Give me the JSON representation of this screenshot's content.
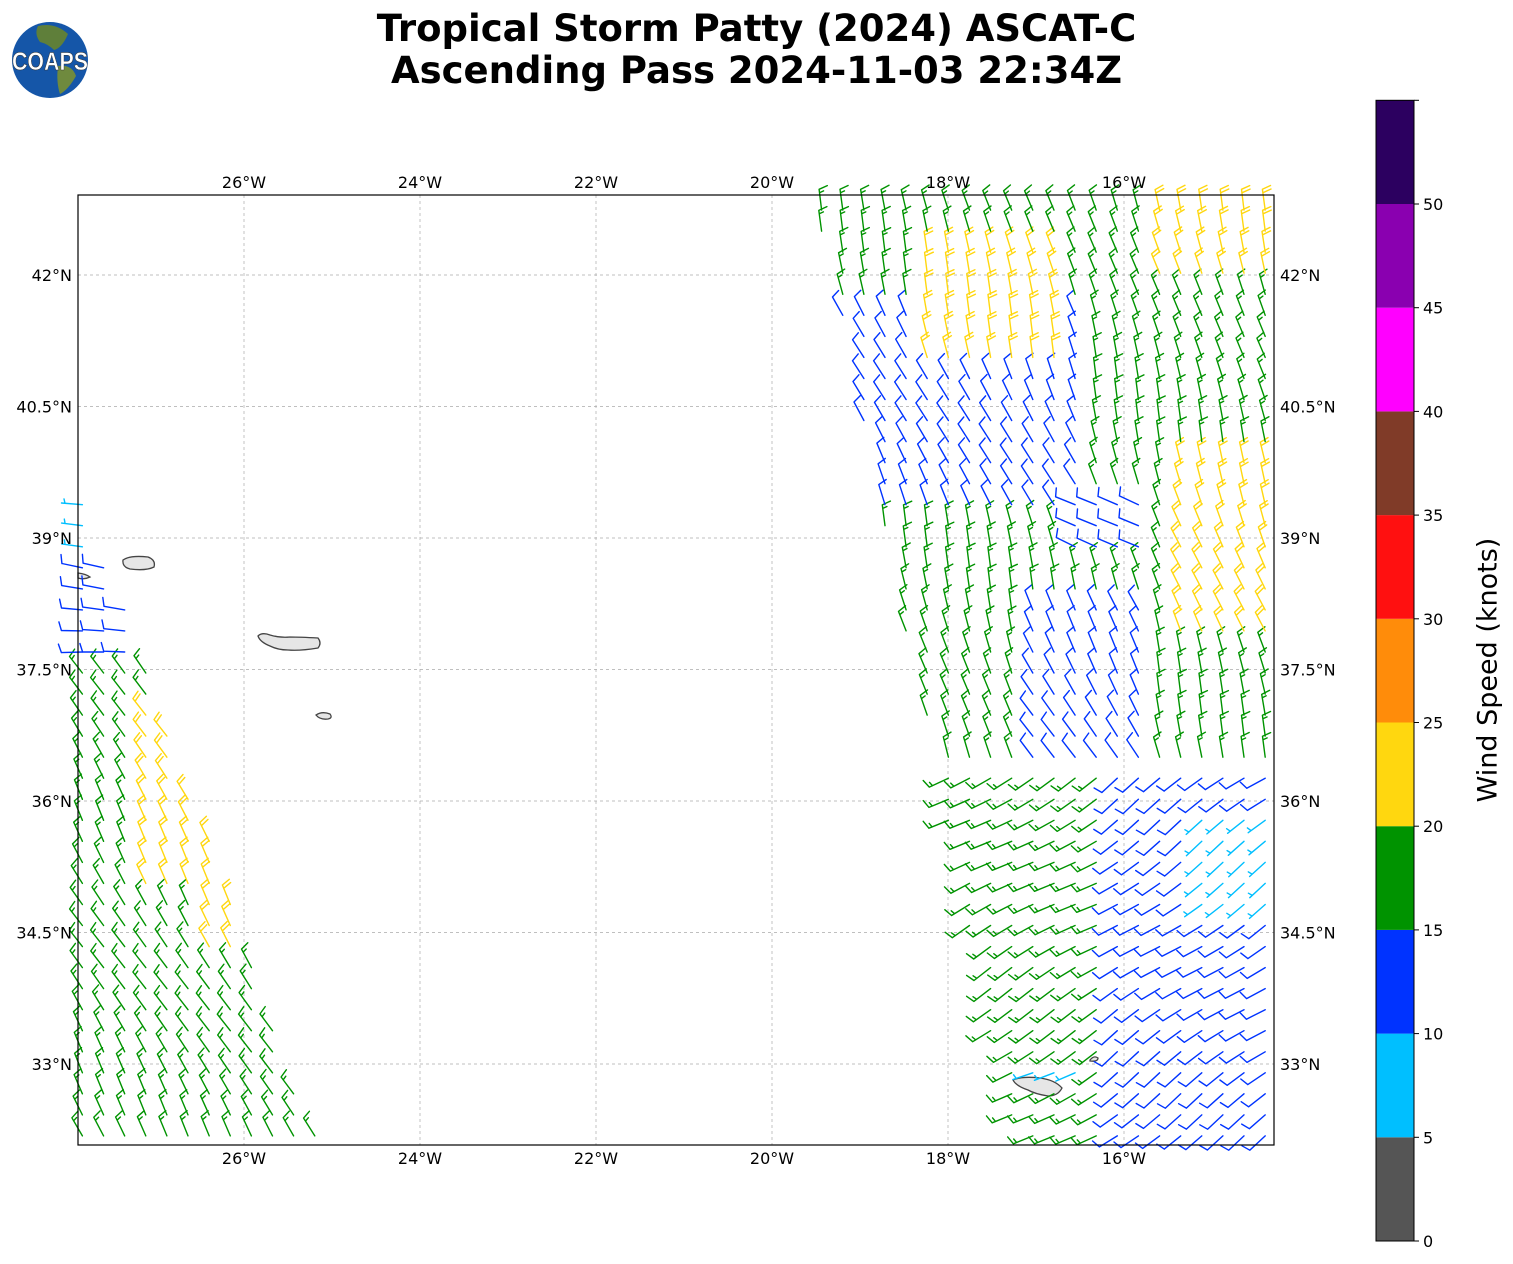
{
  "title": {
    "line1": "Tropical Storm Patty (2024) ASCAT-C",
    "line2": "Ascending Pass 2024-11-03 22:34Z"
  },
  "logo": {
    "text": "COAPS"
  },
  "chart_data": {
    "type": "map-wind-barbs",
    "extent": {
      "lon": [
        -27.886,
        -14.3
      ],
      "lat": [
        32.08,
        42.91
      ]
    },
    "lon_ticks": [
      {
        "v": -26,
        "label": "26°W"
      },
      {
        "v": -24,
        "label": "24°W"
      },
      {
        "v": -22,
        "label": "22°W"
      },
      {
        "v": -20,
        "label": "20°W"
      },
      {
        "v": -18,
        "label": "18°W"
      },
      {
        "v": -16,
        "label": "16°W"
      }
    ],
    "lat_ticks": [
      {
        "v": 42,
        "label": "42°N"
      },
      {
        "v": 40.5,
        "label": "40.5°N"
      },
      {
        "v": 39,
        "label": "39°N"
      },
      {
        "v": 37.5,
        "label": "37.5°N"
      },
      {
        "v": 36,
        "label": "36°N"
      },
      {
        "v": 34.5,
        "label": "34.5°N"
      },
      {
        "v": 33,
        "label": "33°N"
      }
    ],
    "grid": true,
    "colorbar": {
      "label": "Wind Speed (knots)",
      "bounds": [
        0,
        5,
        10,
        15,
        20,
        25,
        30,
        35,
        40,
        45,
        50,
        55
      ],
      "tick_labels": [
        "0",
        "5",
        "10",
        "15",
        "20",
        "25",
        "30",
        "35",
        "40",
        "45",
        "50"
      ],
      "colors": [
        "#555555",
        "#00bfff",
        "#0033ff",
        "#009300",
        "#ffd70f",
        "#ff8c0a",
        "#ff1010",
        "#803b28",
        "#ff00ff",
        "#8a00b0",
        "#2c0060"
      ]
    },
    "swaths": [
      {
        "name": "west",
        "edge": [
          [
            -27.886,
            39.66
          ],
          [
            -25.14,
            32.08
          ]
        ],
        "side": "west",
        "step": 0.24,
        "default": {
          "speed": 17,
          "dir": 330
        },
        "zones": [
          {
            "lon": [
              -27.9,
              -26.3
            ],
            "lat": [
              37.6,
              39.7
            ],
            "speed": 12,
            "dir": 275
          },
          {
            "lon": [
              -27.9,
              -27.5
            ],
            "lat": [
              38.9,
              39.7
            ],
            "speed": 8,
            "dir": 270
          },
          {
            "lon": [
              -27.3,
              -26.1
            ],
            "lat": [
              35.0,
              37.1
            ],
            "speed": 22,
            "dir": 330
          },
          {
            "lon": [
              -26.6,
              -25.8
            ],
            "lat": [
              34.3,
              35.4
            ],
            "speed": 22,
            "dir": 330
          }
        ]
      },
      {
        "name": "east",
        "edge": [
          [
            -19.57,
            42.88
          ],
          [
            -17.3,
            32.1
          ]
        ],
        "side": "east",
        "step": 0.24,
        "default": {
          "speed": 17,
          "dir": 345
        },
        "zones": [
          {
            "lon": [
              -19.4,
              -16.5
            ],
            "lat": [
              39.2,
              41.6
            ],
            "speed": 12,
            "dir": 335
          },
          {
            "lon": [
              -16.6,
              -15.6
            ],
            "lat": [
              38.8,
              39.6
            ],
            "speed": 12,
            "dir": 300
          },
          {
            "lon": [
              -18.3,
              -16.6
            ],
            "lat": [
              41.0,
              42.4
            ],
            "speed": 22,
            "dir": 345
          },
          {
            "lon": [
              -15.7,
              -14.3
            ],
            "lat": [
              41.9,
              42.9
            ],
            "speed": 22,
            "dir": 345
          },
          {
            "lon": [
              -15.5,
              -14.3
            ],
            "lat": [
              37.9,
              40.1
            ],
            "speed": 22,
            "dir": 340
          },
          {
            "lon": [
              -17.2,
              -15.6
            ],
            "lat": [
              36.0,
              38.4
            ],
            "speed": 12,
            "dir": 330
          },
          {
            "lon": [
              -18.2,
              -16.0
            ],
            "lat": [
              32.1,
              36.3
            ],
            "speed": 17,
            "dir": 240
          },
          {
            "lon": [
              -16.3,
              -14.3
            ],
            "lat": [
              32.1,
              36.5
            ],
            "speed": 12,
            "dir": 235
          },
          {
            "lon": [
              -15.3,
              -14.3
            ],
            "lat": [
              34.6,
              35.8
            ],
            "speed": 8,
            "dir": 235
          },
          {
            "lon": [
              -17.2,
              -16.4
            ],
            "lat": [
              32.8,
              33.1
            ],
            "speed": 8,
            "dir": 250
          }
        ]
      }
    ]
  }
}
